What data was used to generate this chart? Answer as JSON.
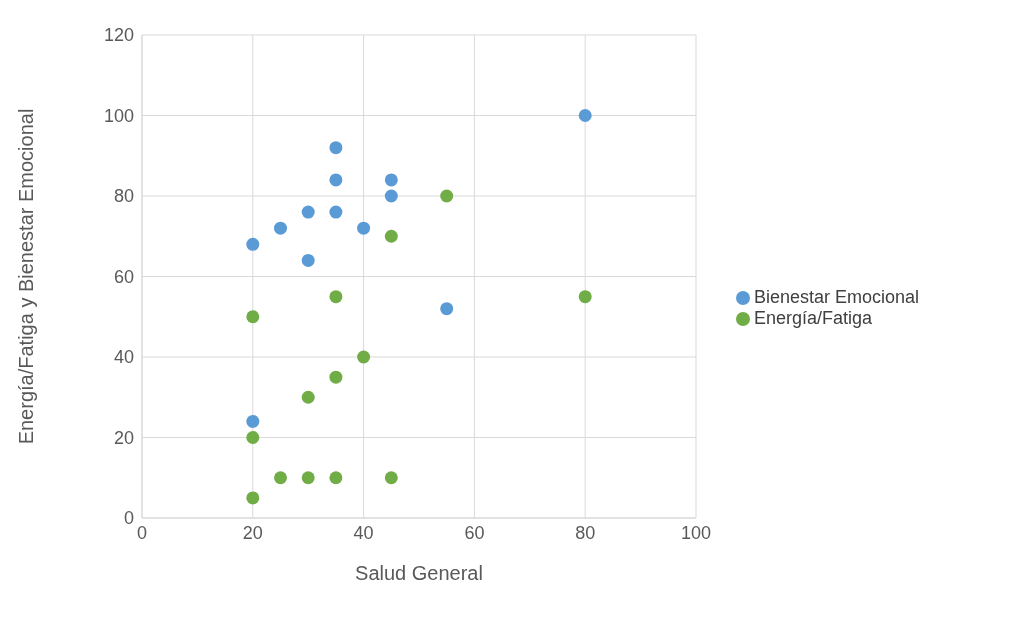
{
  "chart_data": {
    "type": "scatter",
    "xlabel": "Salud General",
    "ylabel": "Energía/Fatiga y Bienestar Emocional",
    "xlim": [
      0,
      100
    ],
    "xticks": [
      0,
      20,
      40,
      60,
      80,
      100
    ],
    "ylim": [
      0,
      120
    ],
    "yticks": [
      0,
      20,
      40,
      60,
      80,
      100,
      120
    ],
    "grid": true,
    "legend": "right",
    "marker": "circle",
    "series": [
      {
        "name": "Energía/Fatiga",
        "color": "#70ad47",
        "x": [
          20,
          20,
          20,
          25,
          30,
          30,
          35,
          35,
          35,
          40,
          45,
          45,
          55,
          80
        ],
        "values": [
          50,
          20,
          5,
          10,
          30,
          10,
          55,
          35,
          10,
          40,
          70,
          10,
          80,
          55
        ]
      },
      {
        "name": "Bienestar Emocional",
        "color": "#5b9bd5",
        "x": [
          20,
          20,
          25,
          30,
          30,
          35,
          35,
          35,
          40,
          45,
          45,
          55,
          80
        ],
        "values": [
          68,
          24,
          72,
          76,
          64,
          92,
          84,
          76,
          72,
          84,
          80,
          52,
          100
        ]
      }
    ]
  }
}
